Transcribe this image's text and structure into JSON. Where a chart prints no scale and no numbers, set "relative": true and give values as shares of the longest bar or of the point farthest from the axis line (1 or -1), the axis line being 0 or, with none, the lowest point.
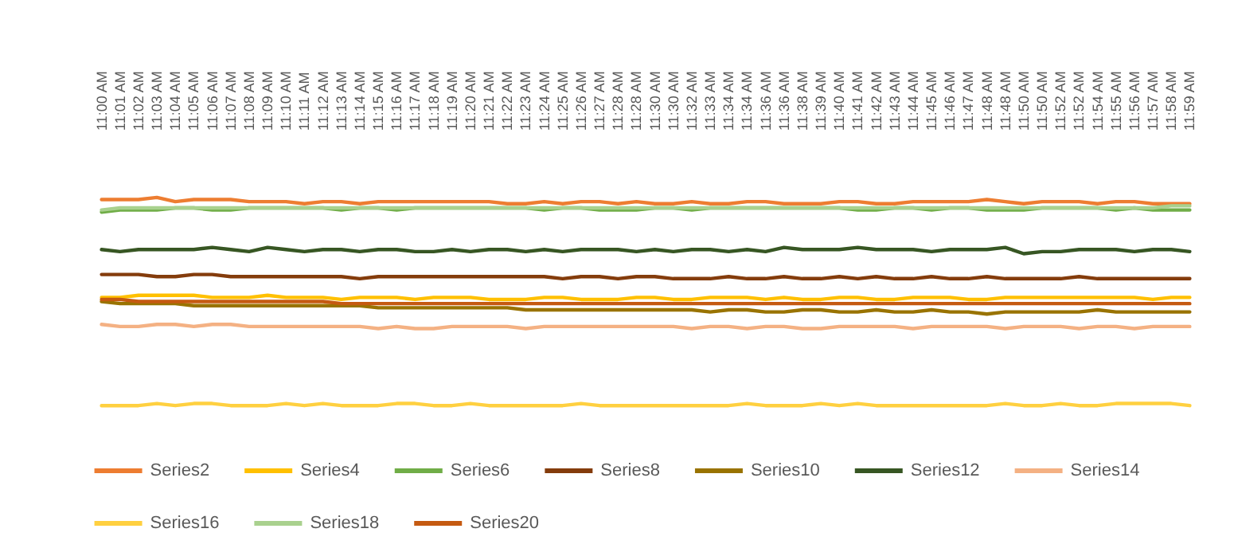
{
  "chart_data": {
    "type": "line",
    "relative": true,
    "legend": "bottom",
    "marker": "none",
    "line_style": "solid",
    "categories": [
      "11:00 AM",
      "11:01 AM",
      "11:02 AM",
      "11:03 AM",
      "11:04 AM",
      "11:05 AM",
      "11:06 AM",
      "11:07 AM",
      "11:08 AM",
      "11:09 AM",
      "11:10 AM",
      "11:11 AM",
      "11:12 AM",
      "11:13 AM",
      "11:14 AM",
      "11:15 AM",
      "11:16 AM",
      "11:17 AM",
      "11:18 AM",
      "11:19 AM",
      "11:20 AM",
      "11:21 AM",
      "11:22 AM",
      "11:23 AM",
      "11:24 AM",
      "11:25 AM",
      "11:26 AM",
      "11:27 AM",
      "11:28 AM",
      "11:28 AM",
      "11:30 AM",
      "11:30 AM",
      "11:32 AM",
      "11:33 AM",
      "11:34 AM",
      "11:34 AM",
      "11:36 AM",
      "11:36 AM",
      "11:38 AM",
      "11:39 AM",
      "11:40 AM",
      "11:41 AM",
      "11:42 AM",
      "11:43 AM",
      "11:44 AM",
      "11:45 AM",
      "11:46 AM",
      "11:47 AM",
      "11:48 AM",
      "11:48 AM",
      "11:50 AM",
      "11:50 AM",
      "11:52 AM",
      "11:52 AM",
      "11:54 AM",
      "11:55 AM",
      "11:56 AM",
      "11:57 AM",
      "11:58 AM",
      "11:59 AM"
    ],
    "series": [
      {
        "name": "Series2",
        "color": "#ed7d31",
        "values": [
          0.99,
          0.99,
          0.99,
          1.0,
          0.98,
          0.99,
          0.99,
          0.99,
          0.98,
          0.98,
          0.98,
          0.97,
          0.98,
          0.98,
          0.97,
          0.98,
          0.98,
          0.98,
          0.98,
          0.98,
          0.98,
          0.98,
          0.97,
          0.97,
          0.98,
          0.97,
          0.98,
          0.98,
          0.97,
          0.98,
          0.97,
          0.97,
          0.98,
          0.97,
          0.97,
          0.98,
          0.98,
          0.97,
          0.97,
          0.97,
          0.98,
          0.98,
          0.97,
          0.97,
          0.98,
          0.98,
          0.98,
          0.98,
          0.99,
          0.98,
          0.97,
          0.98,
          0.98,
          0.98,
          0.97,
          0.98,
          0.98,
          0.97,
          0.97,
          0.97
        ]
      },
      {
        "name": "Series4",
        "color": "#ffc000",
        "values": [
          0.52,
          0.52,
          0.53,
          0.53,
          0.53,
          0.53,
          0.52,
          0.52,
          0.52,
          0.53,
          0.52,
          0.52,
          0.52,
          0.51,
          0.52,
          0.52,
          0.52,
          0.51,
          0.52,
          0.52,
          0.52,
          0.51,
          0.51,
          0.51,
          0.52,
          0.52,
          0.51,
          0.51,
          0.51,
          0.52,
          0.52,
          0.51,
          0.51,
          0.52,
          0.52,
          0.52,
          0.51,
          0.52,
          0.51,
          0.51,
          0.52,
          0.52,
          0.51,
          0.51,
          0.52,
          0.52,
          0.52,
          0.51,
          0.51,
          0.52,
          0.52,
          0.52,
          0.52,
          0.52,
          0.52,
          0.52,
          0.52,
          0.51,
          0.52,
          0.52
        ]
      },
      {
        "name": "Series6",
        "color": "#70ad47",
        "values": [
          0.93,
          0.94,
          0.94,
          0.94,
          0.95,
          0.95,
          0.94,
          0.94,
          0.95,
          0.95,
          0.95,
          0.95,
          0.95,
          0.94,
          0.95,
          0.95,
          0.94,
          0.95,
          0.95,
          0.95,
          0.95,
          0.95,
          0.95,
          0.95,
          0.94,
          0.95,
          0.95,
          0.94,
          0.94,
          0.94,
          0.95,
          0.95,
          0.94,
          0.95,
          0.95,
          0.95,
          0.95,
          0.95,
          0.95,
          0.95,
          0.95,
          0.94,
          0.94,
          0.95,
          0.95,
          0.94,
          0.95,
          0.95,
          0.94,
          0.94,
          0.94,
          0.95,
          0.95,
          0.95,
          0.95,
          0.94,
          0.95,
          0.94,
          0.94,
          0.94
        ]
      },
      {
        "name": "Series8",
        "color": "#843c0c",
        "values": [
          0.63,
          0.63,
          0.63,
          0.62,
          0.62,
          0.63,
          0.63,
          0.62,
          0.62,
          0.62,
          0.62,
          0.62,
          0.62,
          0.62,
          0.61,
          0.62,
          0.62,
          0.62,
          0.62,
          0.62,
          0.62,
          0.62,
          0.62,
          0.62,
          0.62,
          0.61,
          0.62,
          0.62,
          0.61,
          0.62,
          0.62,
          0.61,
          0.61,
          0.61,
          0.62,
          0.61,
          0.61,
          0.62,
          0.61,
          0.61,
          0.62,
          0.61,
          0.62,
          0.61,
          0.61,
          0.62,
          0.61,
          0.61,
          0.62,
          0.61,
          0.61,
          0.61,
          0.61,
          0.62,
          0.61,
          0.61,
          0.61,
          0.61,
          0.61,
          0.61
        ]
      },
      {
        "name": "Series10",
        "color": "#997300",
        "values": [
          0.5,
          0.49,
          0.49,
          0.49,
          0.49,
          0.48,
          0.48,
          0.48,
          0.48,
          0.48,
          0.48,
          0.48,
          0.48,
          0.48,
          0.48,
          0.47,
          0.47,
          0.47,
          0.47,
          0.47,
          0.47,
          0.47,
          0.47,
          0.46,
          0.46,
          0.46,
          0.46,
          0.46,
          0.46,
          0.46,
          0.46,
          0.46,
          0.46,
          0.45,
          0.46,
          0.46,
          0.45,
          0.45,
          0.46,
          0.46,
          0.45,
          0.45,
          0.46,
          0.45,
          0.45,
          0.46,
          0.45,
          0.45,
          0.44,
          0.45,
          0.45,
          0.45,
          0.45,
          0.45,
          0.46,
          0.45,
          0.45,
          0.45,
          0.45,
          0.45
        ]
      },
      {
        "name": "Series12",
        "color": "#375623",
        "values": [
          0.75,
          0.74,
          0.75,
          0.75,
          0.75,
          0.75,
          0.76,
          0.75,
          0.74,
          0.76,
          0.75,
          0.74,
          0.75,
          0.75,
          0.74,
          0.75,
          0.75,
          0.74,
          0.74,
          0.75,
          0.74,
          0.75,
          0.75,
          0.74,
          0.75,
          0.74,
          0.75,
          0.75,
          0.75,
          0.74,
          0.75,
          0.74,
          0.75,
          0.75,
          0.74,
          0.75,
          0.74,
          0.76,
          0.75,
          0.75,
          0.75,
          0.76,
          0.75,
          0.75,
          0.75,
          0.74,
          0.75,
          0.75,
          0.75,
          0.76,
          0.73,
          0.74,
          0.74,
          0.75,
          0.75,
          0.75,
          0.74,
          0.75,
          0.75,
          0.74
        ]
      },
      {
        "name": "Series14",
        "color": "#f4b183",
        "values": [
          0.39,
          0.38,
          0.38,
          0.39,
          0.39,
          0.38,
          0.39,
          0.39,
          0.38,
          0.38,
          0.38,
          0.38,
          0.38,
          0.38,
          0.38,
          0.37,
          0.38,
          0.37,
          0.37,
          0.38,
          0.38,
          0.38,
          0.38,
          0.37,
          0.38,
          0.38,
          0.38,
          0.38,
          0.38,
          0.38,
          0.38,
          0.38,
          0.37,
          0.38,
          0.38,
          0.37,
          0.38,
          0.38,
          0.37,
          0.37,
          0.38,
          0.38,
          0.38,
          0.38,
          0.37,
          0.38,
          0.38,
          0.38,
          0.38,
          0.37,
          0.38,
          0.38,
          0.38,
          0.37,
          0.38,
          0.38,
          0.37,
          0.38,
          0.38,
          0.38
        ]
      },
      {
        "name": "Series16",
        "color": "#ffd040",
        "values": [
          0.0,
          0.0,
          0.0,
          0.01,
          0.0,
          0.01,
          0.01,
          0.0,
          0.0,
          0.0,
          0.01,
          0.0,
          0.01,
          0.0,
          0.0,
          0.0,
          0.01,
          0.01,
          0.0,
          0.0,
          0.01,
          0.0,
          0.0,
          0.0,
          0.0,
          0.0,
          0.01,
          0.0,
          0.0,
          0.0,
          0.0,
          0.0,
          0.0,
          0.0,
          0.0,
          0.01,
          0.0,
          0.0,
          0.0,
          0.01,
          0.0,
          0.01,
          0.0,
          0.0,
          0.0,
          0.0,
          0.0,
          0.0,
          0.0,
          0.01,
          0.0,
          0.0,
          0.01,
          0.0,
          0.0,
          0.01,
          0.01,
          0.01,
          0.01,
          0.0
        ]
      },
      {
        "name": "Series18",
        "color": "#a9d18e",
        "values": [
          0.94,
          0.95,
          0.95,
          0.95,
          0.95,
          0.95,
          0.95,
          0.95,
          0.95,
          0.95,
          0.95,
          0.95,
          0.95,
          0.95,
          0.95,
          0.95,
          0.95,
          0.95,
          0.95,
          0.95,
          0.95,
          0.95,
          0.95,
          0.95,
          0.95,
          0.95,
          0.95,
          0.95,
          0.95,
          0.95,
          0.95,
          0.95,
          0.95,
          0.95,
          0.95,
          0.95,
          0.95,
          0.95,
          0.95,
          0.95,
          0.95,
          0.95,
          0.95,
          0.95,
          0.95,
          0.95,
          0.95,
          0.95,
          0.95,
          0.95,
          0.95,
          0.95,
          0.95,
          0.95,
          0.95,
          0.95,
          0.95,
          0.95,
          0.96,
          0.96
        ]
      },
      {
        "name": "Series20",
        "color": "#c55a11",
        "values": [
          0.51,
          0.51,
          0.5,
          0.5,
          0.5,
          0.5,
          0.5,
          0.5,
          0.5,
          0.5,
          0.5,
          0.5,
          0.5,
          0.49,
          0.49,
          0.49,
          0.49,
          0.49,
          0.49,
          0.49,
          0.49,
          0.49,
          0.49,
          0.49,
          0.49,
          0.49,
          0.49,
          0.49,
          0.49,
          0.49,
          0.49,
          0.49,
          0.49,
          0.49,
          0.49,
          0.49,
          0.49,
          0.49,
          0.49,
          0.49,
          0.49,
          0.49,
          0.49,
          0.49,
          0.49,
          0.49,
          0.49,
          0.49,
          0.49,
          0.49,
          0.49,
          0.49,
          0.49,
          0.49,
          0.49,
          0.49,
          0.49,
          0.49,
          0.49,
          0.49
        ]
      }
    ]
  }
}
